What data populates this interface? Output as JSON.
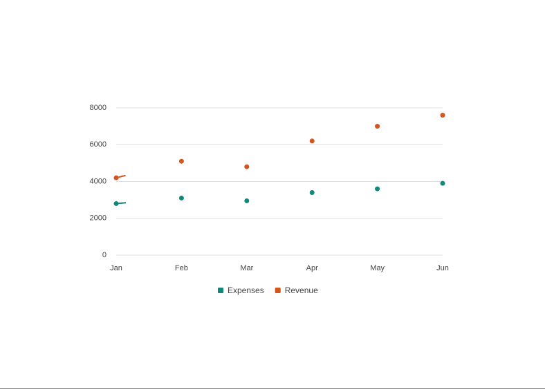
{
  "chart_data": {
    "type": "line",
    "categories": [
      "Jan",
      "Feb",
      "Mar",
      "Apr",
      "May",
      "Jun"
    ],
    "series": [
      {
        "name": "Expenses",
        "color": "#12877a",
        "values": [
          2800,
          3100,
          2950,
          3400,
          3600,
          3900
        ]
      },
      {
        "name": "Revenue",
        "color": "#d4541e",
        "values": [
          4200,
          5100,
          4800,
          6200,
          7000,
          7600
        ]
      }
    ],
    "ylim": [
      0,
      8000
    ],
    "yticks": [
      0,
      2000,
      4000,
      6000,
      8000
    ],
    "grid": true
  }
}
